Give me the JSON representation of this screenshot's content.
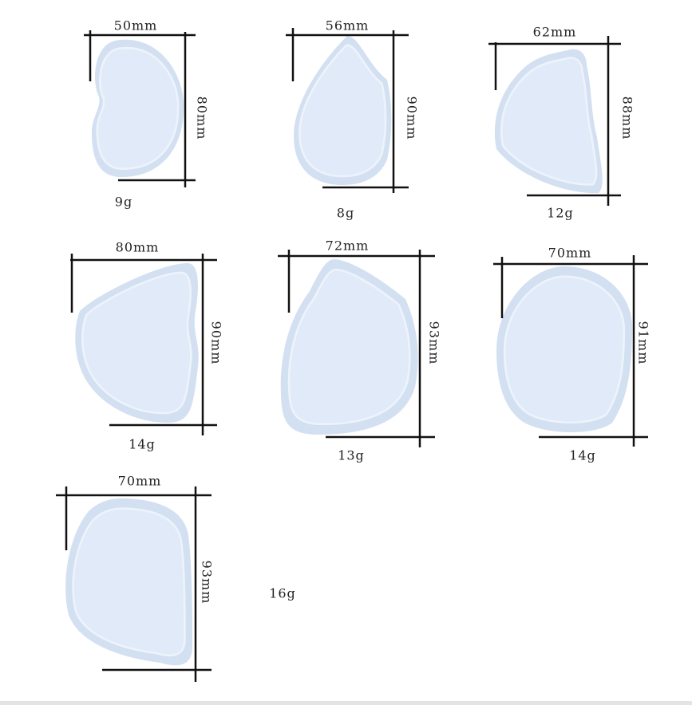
{
  "items": [
    {
      "width": "50mm",
      "height": "80mm",
      "weight": "9g"
    },
    {
      "width": "56mm",
      "height": "90mm",
      "weight": "8g"
    },
    {
      "width": "62mm",
      "height": "88mm",
      "weight": "12g"
    },
    {
      "width": "80mm",
      "height": "90mm",
      "weight": "14g"
    },
    {
      "width": "72mm",
      "height": "93mm",
      "weight": "13g"
    },
    {
      "width": "70mm",
      "height": "91mm",
      "weight": "14g"
    },
    {
      "width": "70mm",
      "height": "93mm",
      "weight": "16g"
    }
  ]
}
